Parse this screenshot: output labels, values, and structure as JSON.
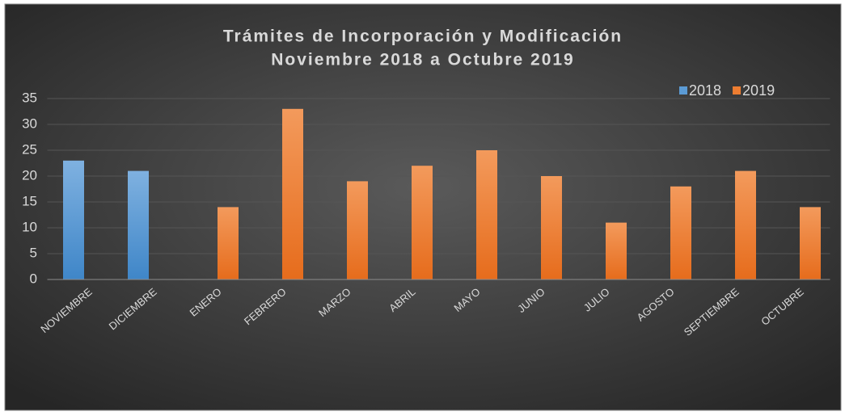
{
  "chart_data": {
    "type": "bar",
    "title": "Trámites de Incorporación y Modificación",
    "subtitle": "Noviembre 2018 a Octubre 2019",
    "categories": [
      "NOVIEMBRE",
      "DICIEMBRE",
      "ENERO",
      "FEBRERO",
      "MARZO",
      "ABRIL",
      "MAYO",
      "JUNIO",
      "JULIO",
      "AGOSTO",
      "SEPTIEMBRE",
      "OCTUBRE"
    ],
    "series": [
      {
        "name": "2018",
        "color": "#5b9bd5",
        "values": [
          23,
          21,
          null,
          null,
          null,
          null,
          null,
          null,
          null,
          null,
          null,
          null
        ]
      },
      {
        "name": "2019",
        "color": "#ed7d31",
        "values": [
          null,
          null,
          14,
          33,
          19,
          22,
          25,
          20,
          11,
          18,
          21,
          14
        ]
      }
    ],
    "ylim": [
      0,
      35
    ],
    "yticks": [
      0,
      5,
      10,
      15,
      20,
      25,
      30,
      35
    ],
    "grid": true,
    "legend": "top-right"
  }
}
